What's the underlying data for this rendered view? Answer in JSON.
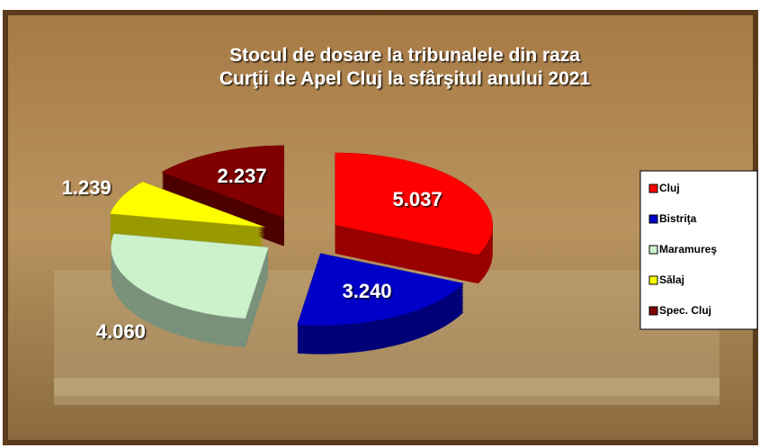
{
  "chart_data": {
    "type": "pie",
    "title": [
      "Stocul de dosare la tribunalele din raza",
      "Curţii de Apel Cluj la sfârşitul anului 2021"
    ],
    "categories": [
      "Cluj",
      "Bistriţa",
      "Maramureş",
      "Sălaj",
      "Spec. Cluj"
    ],
    "values": [
      5037,
      3240,
      4060,
      1239,
      2237
    ],
    "value_labels": [
      "5.037",
      "3.240",
      "4.060",
      "1.239",
      "2.237"
    ],
    "colors": [
      "#ff0000",
      "#0000c8",
      "#ccf2cc",
      "#ffff00",
      "#800000"
    ],
    "legend": "right"
  }
}
